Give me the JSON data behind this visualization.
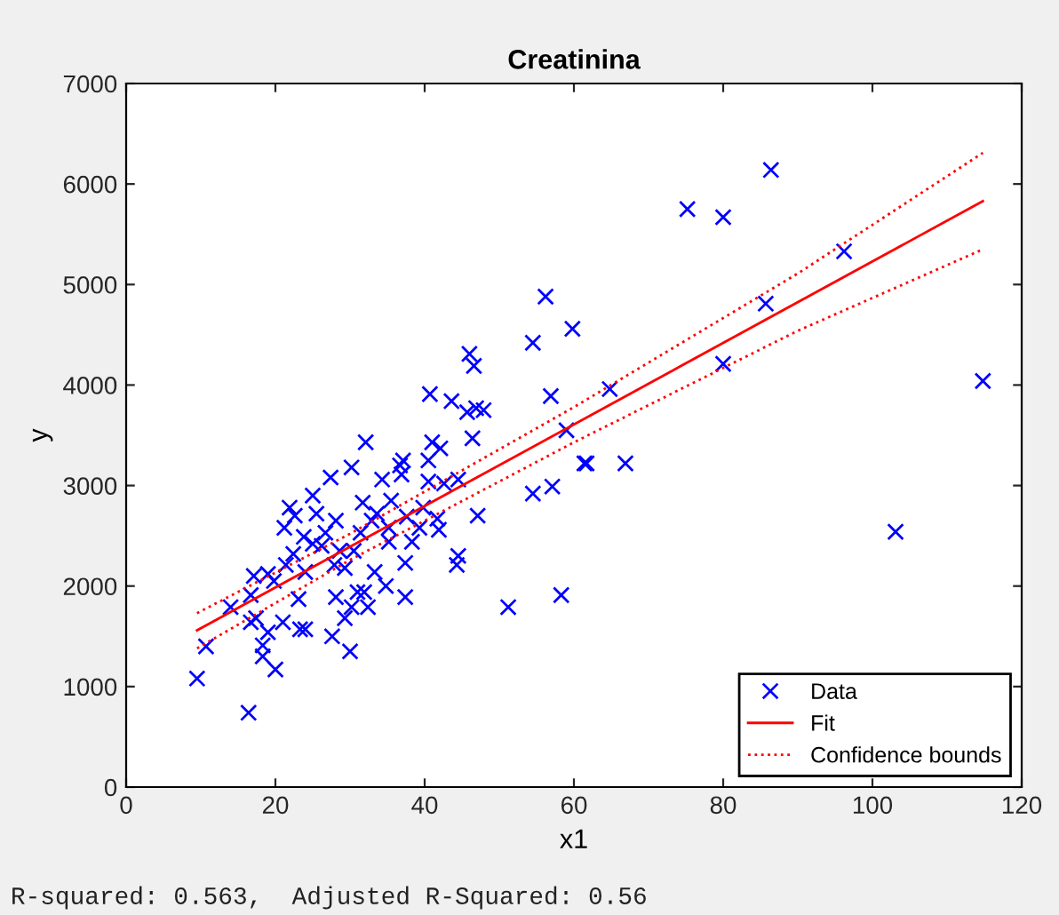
{
  "chart_data": {
    "type": "scatter",
    "title": "Creatinina",
    "xlabel": "x1",
    "ylabel": "y",
    "xlim": [
      0,
      120
    ],
    "xticks": [
      0,
      20,
      40,
      60,
      80,
      100,
      120
    ],
    "ylim": [
      0,
      7000
    ],
    "yticks": [
      0,
      1000,
      2000,
      3000,
      4000,
      5000,
      6000,
      7000
    ],
    "grid": false,
    "legend": "bottom right",
    "annotations": [
      "R-squared: 0.563,  Adjusted R-Squared: 0.56"
    ],
    "series": [
      {
        "name": "Data",
        "marker": "cross",
        "color": "#0000ff",
        "x": [
          86.4,
          75.2,
          80,
          96.2,
          85.7,
          114.8,
          103.1,
          80,
          64.8,
          66.9,
          61.7,
          56.2,
          59.8,
          54.5,
          46,
          46.6,
          40.7,
          43.6,
          45.7,
          46.9,
          47.9,
          56.9,
          59,
          46.4,
          32.1,
          41,
          42.1,
          61.4,
          40.5,
          37.1,
          36.9,
          40.5,
          42.6,
          44.5,
          54.5,
          57.1,
          47.1,
          39.3,
          41.7,
          41.9,
          44.5,
          44.3,
          37.4,
          34.8,
          37.4,
          31.9,
          51.2,
          58.3,
          32.4,
          30.2,
          27.4,
          25,
          21.9,
          22.6,
          25.5,
          28.1,
          23.8,
          26.2,
          28.6,
          31.4,
          31.7,
          32.9,
          21.4,
          19,
          17.1,
          19.8,
          16.7,
          14,
          23.1,
          28.1,
          31,
          30.2,
          17.4,
          16.7,
          21,
          23.3,
          24,
          29.3,
          18.3,
          19,
          18.3,
          20,
          27.6,
          30,
          10.7,
          9.5,
          16.4,
          34.3,
          35.5,
          36.7,
          33.6,
          35.2,
          37.6,
          39.8,
          30.5,
          33.3,
          35.2,
          27.9,
          25,
          26.7,
          29.3,
          22.4,
          24,
          21.2,
          38.3
        ],
        "values": [
          6140,
          5750,
          5670,
          5330,
          4810,
          4040,
          2540,
          4210,
          3960,
          3220,
          3220,
          4880,
          4560,
          4420,
          4310,
          4190,
          3910,
          3840,
          3730,
          3770,
          3750,
          3890,
          3550,
          3470,
          3430,
          3430,
          3370,
          3220,
          3250,
          3250,
          3110,
          3040,
          3020,
          3060,
          2920,
          2990,
          2700,
          2580,
          2670,
          2560,
          2300,
          2210,
          2230,
          2000,
          1890,
          1940,
          1790,
          1910,
          1790,
          3180,
          3080,
          2900,
          2780,
          2700,
          2720,
          2650,
          2490,
          2400,
          2350,
          2530,
          2830,
          2650,
          2210,
          2120,
          2100,
          2050,
          1910,
          1790,
          1870,
          1890,
          1940,
          1790,
          1680,
          1640,
          1640,
          1570,
          1570,
          1680,
          1410,
          1540,
          1300,
          1170,
          1500,
          1350,
          1400,
          1080,
          740,
          3060,
          2850,
          3200,
          2720,
          2580,
          2690,
          2780,
          2350,
          2140,
          2440,
          2210,
          2420,
          2530,
          2180,
          2320,
          2140,
          2580,
          2440
        ]
      },
      {
        "name": "Fit",
        "type": "line",
        "line_style": "solid",
        "marker": "none",
        "color": "#ff0000",
        "x": [
          9.5,
          114.8
        ],
        "values": [
          1560,
          5830
        ]
      },
      {
        "name": "Confidence bounds",
        "type": "line",
        "line_style": "dotted",
        "marker": "none",
        "color": "#ff0000",
        "x": [
          9.5,
          30,
          60,
          90,
          114.8
        ],
        "values": [
          1730,
          2520,
          3780,
          5110,
          6310
        ]
      },
      {
        "type": "line",
        "line_style": "dotted",
        "marker": "none",
        "color": "#ff0000",
        "x": [
          9.5,
          30,
          60,
          90,
          114.8
        ],
        "values": [
          1380,
          2260,
          3430,
          4540,
          5350
        ]
      }
    ]
  }
}
